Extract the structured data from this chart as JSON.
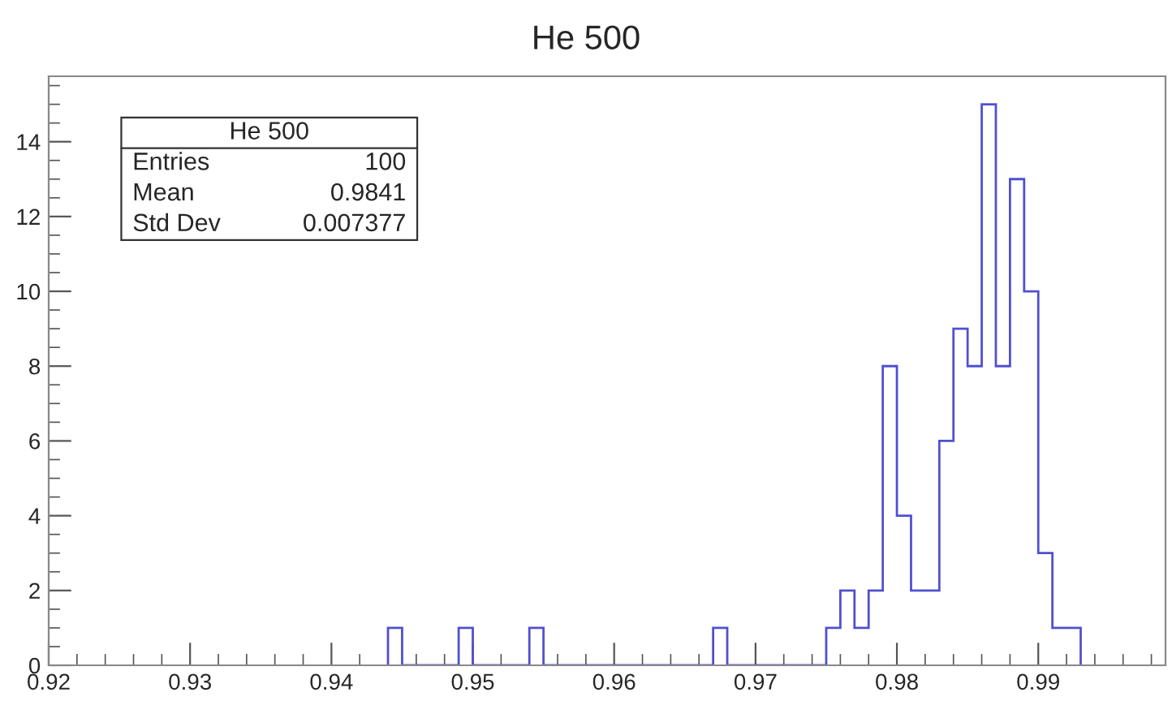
{
  "chart_data": {
    "type": "histogram",
    "title": "He 500",
    "bins": [
      0.944,
      0.945,
      0.946,
      0.947,
      0.948,
      0.949,
      0.95,
      0.951,
      0.952,
      0.953,
      0.954,
      0.955,
      0.956,
      0.957,
      0.958,
      0.959,
      0.96,
      0.961,
      0.962,
      0.963,
      0.964,
      0.965,
      0.966,
      0.967,
      0.968,
      0.969,
      0.97,
      0.971,
      0.972,
      0.973,
      0.974,
      0.975,
      0.976,
      0.977,
      0.978,
      0.979,
      0.98,
      0.981,
      0.982,
      0.983,
      0.984,
      0.985,
      0.986,
      0.987,
      0.988,
      0.989,
      0.99,
      0.991,
      0.992,
      0.993
    ],
    "values": [
      1,
      0,
      0,
      0,
      0,
      1,
      0,
      0,
      0,
      0,
      1,
      0,
      0,
      0,
      0,
      0,
      0,
      0,
      0,
      0,
      0,
      0,
      0,
      1,
      0,
      0,
      0,
      0,
      0,
      0,
      0,
      1,
      2,
      1,
      2,
      8,
      4,
      2,
      2,
      6,
      9,
      8,
      15,
      8,
      13,
      10,
      3,
      1,
      1
    ],
    "color": "#5050d0",
    "xlim": [
      0.92,
      0.999
    ],
    "xticks": [
      0.92,
      0.93,
      0.94,
      0.95,
      0.96,
      0.97,
      0.98,
      0.99
    ],
    "ylim": [
      0,
      15.75
    ],
    "yticks": [
      0,
      2,
      4,
      6,
      8,
      10,
      12,
      14
    ],
    "grid": false,
    "annotations": [
      "He 500",
      "Entries",
      "100",
      "Mean",
      "0.9841",
      "Std Dev",
      "0.007377"
    ]
  }
}
